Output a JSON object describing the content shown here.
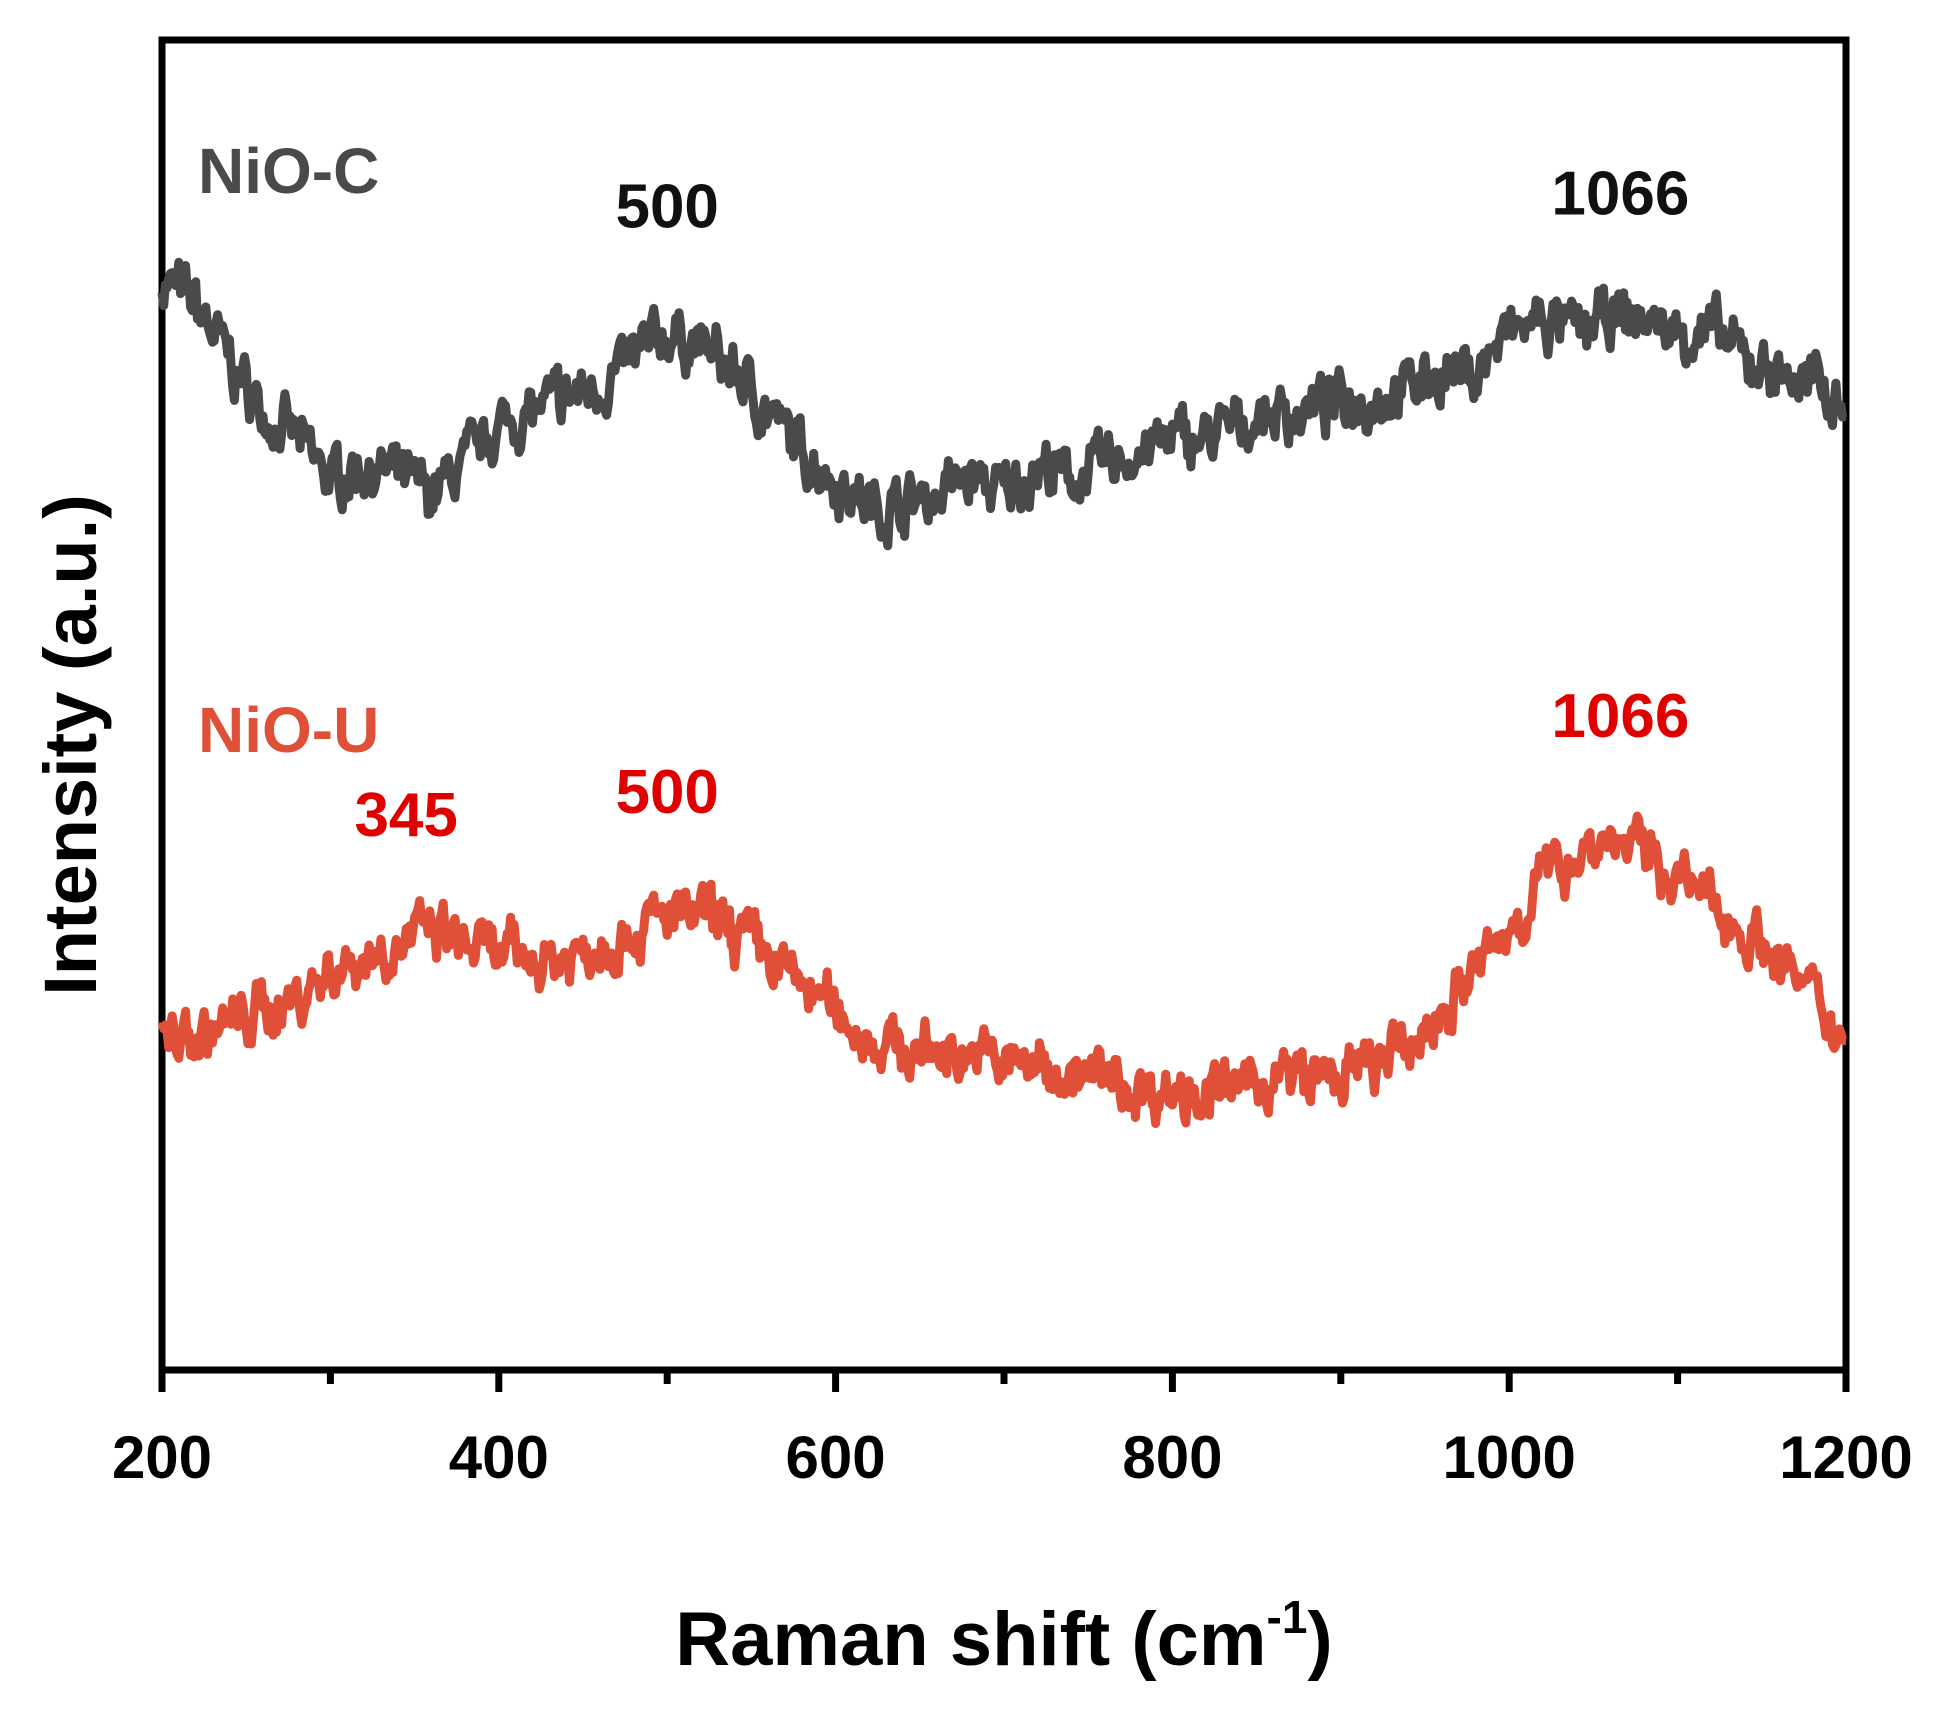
{
  "chart_data": {
    "type": "line",
    "title": "",
    "xlabel_main": "Raman shift (cm",
    "xlabel_sup": "-1",
    "xlabel_close": ")",
    "ylabel": "Intensity (a.u.)",
    "xlim": [
      200,
      1200
    ],
    "ylim": [
      0,
      1
    ],
    "xticks_major": [
      200,
      400,
      600,
      800,
      1000,
      1200
    ],
    "xticks_minor": [
      300,
      500,
      700,
      900,
      1100
    ],
    "yticks": [],
    "grid": false,
    "series": [
      {
        "name": "NiO-C",
        "label": "NiO-C",
        "color": "#4a4a4a",
        "x": [
          200,
          220,
          240,
          260,
          280,
          300,
          320,
          340,
          360,
          380,
          400,
          420,
          440,
          460,
          480,
          500,
          520,
          540,
          560,
          580,
          600,
          620,
          640,
          660,
          680,
          700,
          720,
          740,
          760,
          780,
          800,
          820,
          840,
          860,
          880,
          900,
          920,
          940,
          960,
          980,
          1000,
          1020,
          1040,
          1060,
          1080,
          1100,
          1120,
          1140,
          1160,
          1180,
          1200
        ],
        "values": [
          0.82,
          0.8,
          0.76,
          0.72,
          0.7,
          0.67,
          0.68,
          0.67,
          0.66,
          0.68,
          0.71,
          0.72,
          0.73,
          0.74,
          0.76,
          0.78,
          0.77,
          0.75,
          0.72,
          0.69,
          0.67,
          0.65,
          0.65,
          0.66,
          0.67,
          0.66,
          0.68,
          0.67,
          0.68,
          0.69,
          0.7,
          0.7,
          0.71,
          0.72,
          0.72,
          0.73,
          0.73,
          0.74,
          0.75,
          0.75,
          0.78,
          0.79,
          0.78,
          0.79,
          0.79,
          0.78,
          0.78,
          0.76,
          0.75,
          0.74,
          0.73
        ],
        "peaks": [
          {
            "x": 500,
            "label": "500"
          },
          {
            "x": 1066,
            "label": "1066"
          }
        ]
      },
      {
        "name": "NiO-U",
        "label": "NiO-U",
        "color": "#e05038",
        "x": [
          200,
          220,
          240,
          260,
          280,
          300,
          320,
          340,
          360,
          380,
          400,
          420,
          440,
          460,
          480,
          500,
          520,
          540,
          560,
          580,
          600,
          620,
          640,
          660,
          680,
          700,
          720,
          740,
          760,
          780,
          800,
          820,
          840,
          860,
          880,
          900,
          920,
          940,
          960,
          980,
          1000,
          1020,
          1040,
          1060,
          1080,
          1100,
          1120,
          1140,
          1160,
          1180,
          1200
        ],
        "values": [
          0.25,
          0.25,
          0.26,
          0.27,
          0.28,
          0.3,
          0.31,
          0.32,
          0.33,
          0.32,
          0.31,
          0.31,
          0.31,
          0.32,
          0.33,
          0.34,
          0.34,
          0.33,
          0.31,
          0.29,
          0.27,
          0.25,
          0.24,
          0.24,
          0.24,
          0.23,
          0.23,
          0.22,
          0.22,
          0.21,
          0.21,
          0.21,
          0.21,
          0.22,
          0.22,
          0.22,
          0.23,
          0.24,
          0.27,
          0.3,
          0.33,
          0.37,
          0.39,
          0.4,
          0.39,
          0.37,
          0.35,
          0.33,
          0.31,
          0.28,
          0.25
        ],
        "peaks": [
          {
            "x": 345,
            "label": "345"
          },
          {
            "x": 500,
            "label": "500"
          },
          {
            "x": 1066,
            "label": "1066"
          }
        ]
      }
    ],
    "peak_label_colors": {
      "NiO-C": "#111111",
      "NiO-U": "#e00000"
    }
  }
}
